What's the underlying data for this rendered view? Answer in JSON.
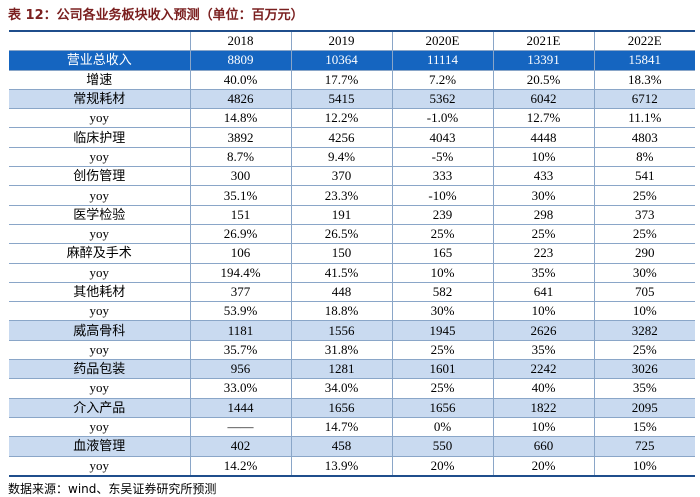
{
  "title": "表 12：公司各业务板块收入预测（单位：百万元）",
  "table": {
    "header": [
      "",
      "2018",
      "2019",
      "2020E",
      "2021E",
      "2022E"
    ],
    "rows": [
      [
        "营业总收入",
        "8809",
        "10364",
        "11114",
        "13391",
        "15841"
      ],
      [
        "增速",
        "40.0%",
        "17.7%",
        "7.2%",
        "20.5%",
        "18.3%"
      ],
      [
        "常规耗材",
        "4826",
        "5415",
        "5362",
        "6042",
        "6712"
      ],
      [
        "yoy",
        "14.8%",
        "12.2%",
        "-1.0%",
        "12.7%",
        "11.1%"
      ],
      [
        "临床护理",
        "3892",
        "4256",
        "4043",
        "4448",
        "4803"
      ],
      [
        "yoy",
        "8.7%",
        "9.4%",
        "-5%",
        "10%",
        "8%"
      ],
      [
        "创伤管理",
        "300",
        "370",
        "333",
        "433",
        "541"
      ],
      [
        "yoy",
        "35.1%",
        "23.3%",
        "-10%",
        "30%",
        "25%"
      ],
      [
        "医学检验",
        "151",
        "191",
        "239",
        "298",
        "373"
      ],
      [
        "yoy",
        "26.9%",
        "26.5%",
        "25%",
        "25%",
        "25%"
      ],
      [
        "麻醉及手术",
        "106",
        "150",
        "165",
        "223",
        "290"
      ],
      [
        "yoy",
        "194.4%",
        "41.5%",
        "10%",
        "35%",
        "30%"
      ],
      [
        "其他耗材",
        "377",
        "448",
        "582",
        "641",
        "705"
      ],
      [
        "yoy",
        "53.9%",
        "18.8%",
        "30%",
        "10%",
        "10%"
      ],
      [
        "威高骨科",
        "1181",
        "1556",
        "1945",
        "2626",
        "3282"
      ],
      [
        "yoy",
        "35.7%",
        "31.8%",
        "25%",
        "35%",
        "25%"
      ],
      [
        "药品包装",
        "956",
        "1281",
        "1601",
        "2242",
        "3026"
      ],
      [
        "yoy",
        "33.0%",
        "34.0%",
        "25%",
        "40%",
        "35%"
      ],
      [
        "介入产品",
        "1444",
        "1656",
        "1656",
        "1822",
        "2095"
      ],
      [
        "yoy",
        "——",
        "14.7%",
        "0%",
        "10%",
        "15%"
      ],
      [
        "血液管理",
        "402",
        "458",
        "550",
        "660",
        "725"
      ],
      [
        "yoy",
        "14.2%",
        "13.9%",
        "20%",
        "20%",
        "10%"
      ]
    ]
  },
  "source": "数据来源：wind、东吴证券研究所预测"
}
